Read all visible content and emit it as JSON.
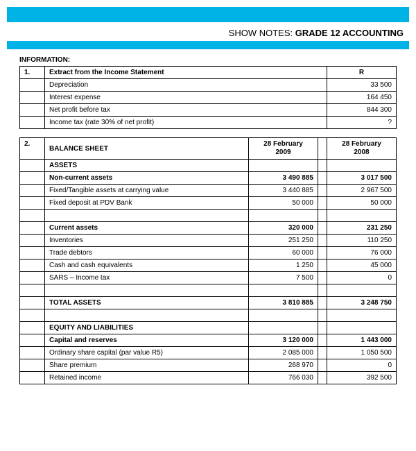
{
  "header": {
    "prefix": "SHOW NOTES:",
    "title": "GRADE 12 ACCOUNTING"
  },
  "colors": {
    "accent": "#00b3e6",
    "border": "#000000",
    "text": "#000000",
    "background": "#ffffff"
  },
  "info_label": "INFORMATION:",
  "table1": {
    "number": "1.",
    "title": "Extract from the Income Statement",
    "value_header": "R",
    "rows": [
      {
        "label": "Depreciation",
        "value": "33 500"
      },
      {
        "label": "Interest expense",
        "value": "164 450"
      },
      {
        "label": "Net profit before tax",
        "value": "844 300"
      },
      {
        "label": "Income tax (rate 30% of net profit)",
        "value": "?"
      }
    ]
  },
  "table2": {
    "number": "2.",
    "title": "BALANCE SHEET",
    "col1_line1": "28 February",
    "col1_line2": "2009",
    "col2_line1": "28 February",
    "col2_line2": "2008",
    "rows": [
      {
        "label": "ASSETS",
        "v1": "",
        "v2": "",
        "bold": true
      },
      {
        "label": "Non-current assets",
        "v1": "3 490 885",
        "v2": "3 017 500",
        "bold": true
      },
      {
        "label": "Fixed/Tangible assets at carrying value",
        "v1": "3 440 885",
        "v2": "2 967 500",
        "bold": false
      },
      {
        "label": "Fixed deposit at PDV Bank",
        "v1": "50 000",
        "v2": "50 000",
        "bold": false
      },
      {
        "label": "",
        "v1": "",
        "v2": "",
        "bold": false
      },
      {
        "label": "Current assets",
        "v1": "320 000",
        "v2": "231 250",
        "bold": true
      },
      {
        "label": "Inventories",
        "v1": "251 250",
        "v2": "110 250",
        "bold": false
      },
      {
        "label": "Trade debtors",
        "v1": "60 000",
        "v2": "76 000",
        "bold": false
      },
      {
        "label": "Cash and cash equivalents",
        "v1": "1 250",
        "v2": "45 000",
        "bold": false
      },
      {
        "label": "SARS – Income tax",
        "v1": "7 500",
        "v2": "0",
        "bold": false
      },
      {
        "label": "",
        "v1": "",
        "v2": "",
        "bold": false
      },
      {
        "label": "TOTAL ASSETS",
        "v1": "3 810 885",
        "v2": "3 248 750",
        "bold": true
      },
      {
        "label": "",
        "v1": "",
        "v2": "",
        "bold": false
      },
      {
        "label": "EQUITY AND LIABILITIES",
        "v1": "",
        "v2": "",
        "bold": true
      },
      {
        "label": "Capital and reserves",
        "v1": "3 120 000",
        "v2": "1 443 000",
        "bold": true
      },
      {
        "label": "Ordinary share capital (par value R5)",
        "v1": "2 085 000",
        "v2": "1 050 500",
        "bold": false
      },
      {
        "label": "Share premium",
        "v1": "268 970",
        "v2": "0",
        "bold": false
      },
      {
        "label": "Retained income",
        "v1": "766 030",
        "v2": "392 500",
        "bold": false
      }
    ]
  }
}
